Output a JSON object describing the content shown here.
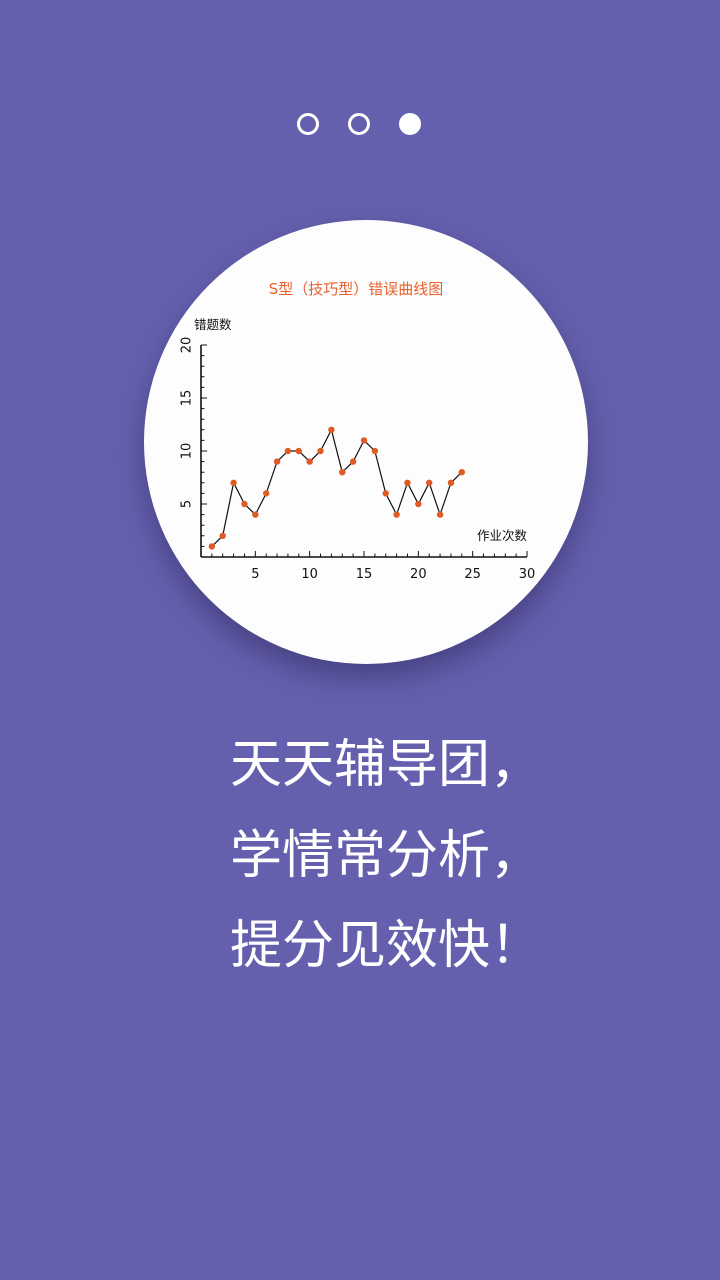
{
  "pager": {
    "count": 3,
    "active_index": 2
  },
  "colors": {
    "background": "#6560ae",
    "card": "#fdfdfd",
    "title": "#e8612c",
    "point": "#e05a24",
    "line": "#111111"
  },
  "chart_data": {
    "type": "line",
    "title": "S型（技巧型）错误曲线图",
    "xlabel": "作业次数",
    "ylabel": "错题数",
    "xlim": [
      0,
      30
    ],
    "ylim": [
      0,
      20
    ],
    "x_ticks": [
      5,
      10,
      15,
      20,
      25,
      30
    ],
    "y_ticks": [
      5,
      10,
      15,
      20
    ],
    "grid": false,
    "series": [
      {
        "x": [
          1,
          2,
          3,
          4,
          5,
          6,
          7,
          8,
          9,
          10,
          11,
          12,
          13,
          14,
          15,
          16,
          17,
          18,
          19,
          20,
          21,
          22,
          23,
          24
        ],
        "y": [
          1,
          2,
          7,
          5,
          4,
          6,
          9,
          10,
          10,
          9,
          10,
          12,
          8,
          9,
          11,
          10,
          6,
          4,
          7,
          5,
          7,
          4,
          7,
          8
        ]
      }
    ]
  },
  "slogan": {
    "line1": "天天辅导团，",
    "line2": "学情常分析，",
    "line3": "提分见效快！"
  }
}
